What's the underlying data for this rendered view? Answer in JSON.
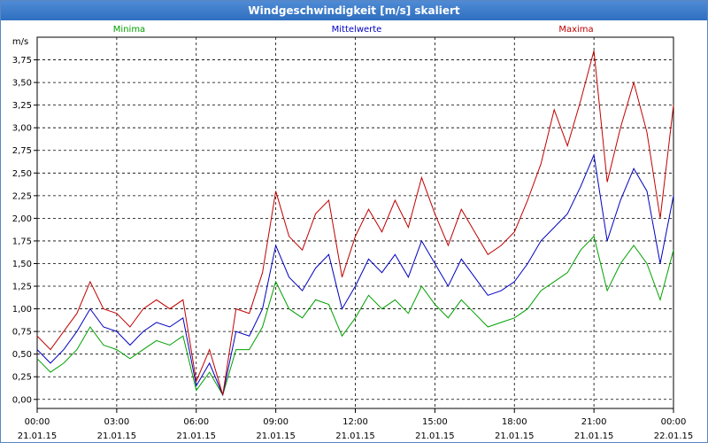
{
  "window": {
    "title": "Windgeschwindigkeit [m/s] skaliert"
  },
  "chart_data": {
    "type": "line",
    "title": "Windgeschwindigkeit [m/s] skaliert",
    "ylabel": "m/s",
    "ylim": [
      -0.1,
      4.0
    ],
    "y_ticks": [
      "0,00",
      "0,25",
      "0,50",
      "0,75",
      "1,00",
      "1,25",
      "1,50",
      "1,75",
      "2,00",
      "2,25",
      "2,50",
      "2,75",
      "3,00",
      "3,25",
      "3,50",
      "3,75"
    ],
    "x_ticks": [
      {
        "time": "00:00",
        "date": "21.01.15"
      },
      {
        "time": "03:00",
        "date": "21.01.15"
      },
      {
        "time": "06:00",
        "date": "21.01.15"
      },
      {
        "time": "09:00",
        "date": "21.01.15"
      },
      {
        "time": "12:00",
        "date": "21.01.15"
      },
      {
        "time": "15:00",
        "date": "21.01.15"
      },
      {
        "time": "18:00",
        "date": "21.01.15"
      },
      {
        "time": "21:00",
        "date": "21.01.15"
      },
      {
        "time": "00:00",
        "date": "22.01.15"
      }
    ],
    "x_hours": [
      0,
      0.5,
      1,
      1.5,
      2,
      2.5,
      3,
      3.5,
      4,
      4.5,
      5,
      5.5,
      6,
      6.5,
      7,
      7.5,
      8,
      8.5,
      9,
      9.5,
      10,
      10.5,
      11,
      11.5,
      12,
      12.5,
      13,
      13.5,
      14,
      14.5,
      15,
      15.5,
      16,
      16.5,
      17,
      17.5,
      18,
      18.5,
      19,
      19.5,
      20,
      20.5,
      21,
      21.5,
      22,
      22.5,
      23,
      23.5,
      24
    ],
    "grid": true,
    "series": [
      {
        "name": "Minima",
        "color": "#00a000",
        "values": [
          0.45,
          0.3,
          0.4,
          0.55,
          0.8,
          0.6,
          0.55,
          0.45,
          0.55,
          0.65,
          0.6,
          0.7,
          0.1,
          0.3,
          0.05,
          0.55,
          0.55,
          0.8,
          1.3,
          1.0,
          0.9,
          1.1,
          1.05,
          0.7,
          0.9,
          1.15,
          1.0,
          1.1,
          0.95,
          1.25,
          1.05,
          0.9,
          1.1,
          0.95,
          0.8,
          0.85,
          0.9,
          1.0,
          1.2,
          1.3,
          1.4,
          1.65,
          1.8,
          1.2,
          1.5,
          1.7,
          1.5,
          1.1,
          1.65
        ]
      },
      {
        "name": "Mittelwerte",
        "color": "#0000c0",
        "values": [
          0.55,
          0.4,
          0.55,
          0.75,
          1.0,
          0.8,
          0.75,
          0.6,
          0.75,
          0.85,
          0.8,
          0.9,
          0.15,
          0.4,
          0.05,
          0.75,
          0.7,
          1.0,
          1.7,
          1.35,
          1.2,
          1.45,
          1.6,
          1.0,
          1.25,
          1.55,
          1.4,
          1.6,
          1.35,
          1.75,
          1.5,
          1.25,
          1.55,
          1.35,
          1.15,
          1.2,
          1.3,
          1.5,
          1.75,
          1.9,
          2.05,
          2.35,
          2.7,
          1.75,
          2.2,
          2.55,
          2.3,
          1.5,
          2.25
        ]
      },
      {
        "name": "Maxima",
        "color": "#c00000",
        "values": [
          0.7,
          0.55,
          0.75,
          0.95,
          1.3,
          1.0,
          0.95,
          0.8,
          1.0,
          1.1,
          1.0,
          1.1,
          0.2,
          0.55,
          0.05,
          1.0,
          0.95,
          1.4,
          2.3,
          1.8,
          1.65,
          2.05,
          2.2,
          1.35,
          1.8,
          2.1,
          1.85,
          2.2,
          1.9,
          2.45,
          2.05,
          1.7,
          2.1,
          1.85,
          1.6,
          1.7,
          1.85,
          2.2,
          2.6,
          3.2,
          2.8,
          3.3,
          3.85,
          2.4,
          3.0,
          3.5,
          2.95,
          2.0,
          3.25
        ]
      }
    ]
  }
}
